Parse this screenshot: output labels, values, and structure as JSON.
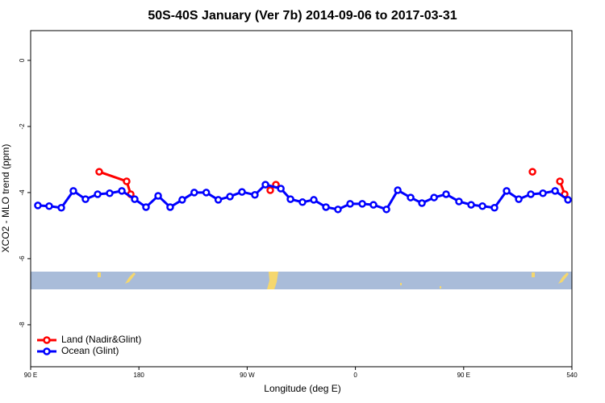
{
  "chart_data": {
    "type": "line",
    "title": "50S-40S January (Ver 7b)   2014-09-06 to 2017-03-31",
    "x_label": "Longitude (deg E)",
    "y_label": "XCO2 - MLO trend (ppm)",
    "xlim": [
      90,
      540
    ],
    "ylim": [
      -9.27,
      0.9
    ],
    "xticks": [
      {
        "value": 90,
        "label": "90 E"
      },
      180,
      {
        "value": 270,
        "label": "90 W"
      },
      {
        "value": 360,
        "label": "0"
      },
      {
        "value": 450,
        "label": "90 E"
      },
      540
    ],
    "yticks": [
      0,
      -2,
      -4,
      -6,
      -8
    ],
    "legend": "bottom-left",
    "series": [
      {
        "name": "Land (Nadir&Glint)",
        "color": "#ff0000",
        "x": [
          147,
          169.8,
          173.2,
          250,
          289.2,
          293.9,
          400,
          507.2,
          520,
          530,
          534
        ],
        "values": [
          -3.37,
          -3.66,
          -4.05,
          null,
          -3.93,
          -3.76,
          null,
          -3.37,
          null,
          -3.66,
          -4.05
        ]
      },
      {
        "name": "Ocean (Glint)",
        "color": "#0000ff",
        "x": [
          96,
          105.4,
          115.5,
          125.5,
          135.6,
          145.7,
          155.7,
          165.8,
          176.5,
          185.9,
          196,
          206,
          216,
          226,
          236,
          246,
          255.7,
          265.7,
          276.4,
          285.2,
          298,
          306,
          316,
          325.4,
          335.5,
          345.5,
          355.6,
          365.7,
          375,
          385.8,
          395.2,
          405.9,
          415.3,
          425.4,
          435.4,
          446.1,
          456.2,
          465.6,
          475.6,
          485.7,
          495.8,
          505.8,
          515.9,
          526,
          536.7
        ],
        "values": [
          -4.39,
          -4.41,
          -4.46,
          -3.95,
          -4.2,
          -4.05,
          -4.02,
          -3.95,
          -4.2,
          -4.44,
          -4.1,
          -4.44,
          -4.22,
          -4.0,
          -4.0,
          -4.22,
          -4.12,
          -3.98,
          -4.07,
          -3.76,
          -3.88,
          -4.2,
          -4.29,
          -4.22,
          -4.44,
          -4.51,
          -4.34,
          -4.34,
          -4.37,
          -4.51,
          -3.93,
          -4.15,
          -4.32,
          -4.15,
          -4.05,
          -4.27,
          -4.37,
          -4.41,
          -4.46,
          -3.95,
          -4.2,
          -4.05,
          -4.02,
          -3.95,
          -4.22
        ]
      }
    ]
  }
}
